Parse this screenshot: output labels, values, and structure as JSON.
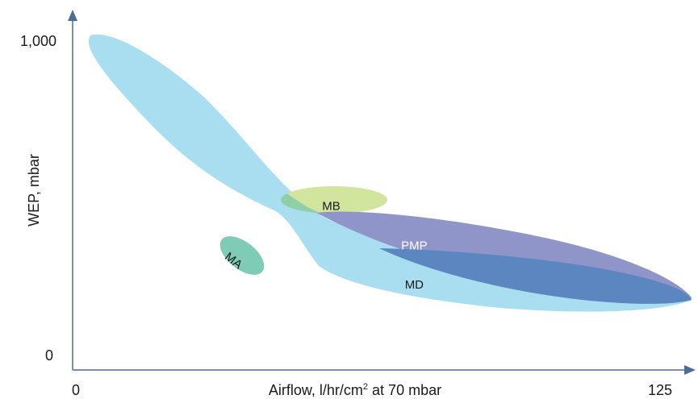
{
  "chart_data": {
    "type": "scatter",
    "xlabel": {
      "prefix": "Airflow, l/hr/cm",
      "sup": "2",
      "suffix": " at 70 mbar"
    },
    "ylabel": "WEP, mbar",
    "xlim": [
      0,
      125
    ],
    "ylim": [
      0,
      1000
    ],
    "x_ticks": [
      {
        "value": 0,
        "label": "0"
      },
      {
        "value": 125,
        "label": "125"
      }
    ],
    "y_ticks": [
      {
        "value": 0,
        "label": "0"
      },
      {
        "value": 1000,
        "label": "1,000"
      }
    ],
    "grid": false,
    "regions": [
      {
        "label": "",
        "color": "#a8def0"
      },
      {
        "label": "MB",
        "color": "#d2e59e",
        "label_color": "#1a1a1a",
        "label_x": 53,
        "label_y": 500
      },
      {
        "label": "PMP",
        "color": "#8f95c8",
        "label_color": "#ffffff",
        "label_x": 70,
        "label_y": 379
      },
      {
        "label": "MD",
        "color": "#5b86c0",
        "label_color": "#1a1a1a",
        "label_x": 70,
        "label_y": 261
      },
      {
        "label": "MA",
        "color": "#7ecbb6",
        "label_color": "#1a1a1a",
        "label_x": 34,
        "label_y": 321
      }
    ]
  },
  "colors": {
    "axis": "#4a6d96",
    "text": "#1a1a1a"
  }
}
